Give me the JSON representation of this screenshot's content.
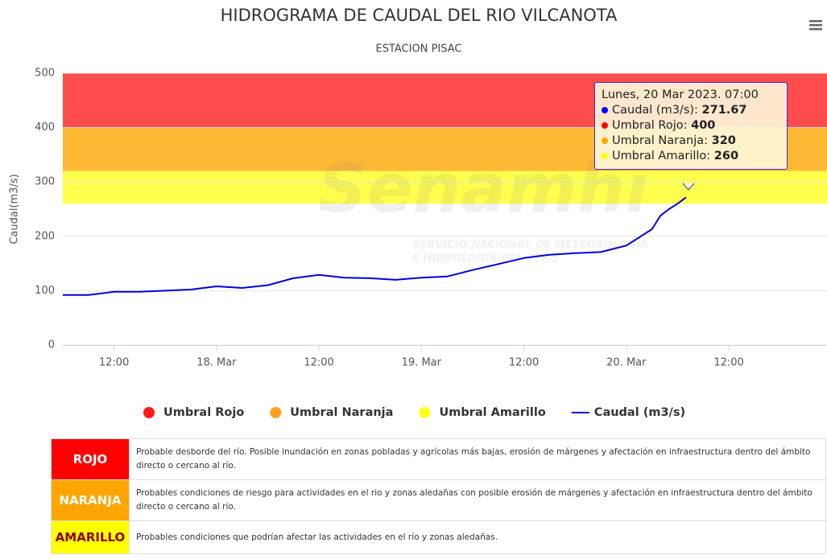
{
  "chart_data": {
    "type": "line",
    "title": "HIDROGRAMA DE CAUDAL DEL RIO VILCANOTA",
    "subtitle": "ESTACION PISAC",
    "y_label": "Caudal(m3/s)",
    "watermark": {
      "name": "Senamhi",
      "text1": "SERVICIO NACIONAL DE METEOROLOGÍA",
      "text2": "E HIDROLOGÍA DEL PERÚ"
    },
    "ylim": [
      0,
      500
    ],
    "yticks": [
      0,
      100,
      200,
      300,
      400,
      500
    ],
    "xlim": [
      "2023-03-17 06:00",
      "2023-03-20 23:30"
    ],
    "xticks": [
      {
        "value": "2023-03-17 12:00",
        "label": "12:00"
      },
      {
        "value": "2023-03-18 00:00",
        "label": "18. Mar"
      },
      {
        "value": "2023-03-18 12:00",
        "label": "12:00"
      },
      {
        "value": "2023-03-19 00:00",
        "label": "19. Mar"
      },
      {
        "value": "2023-03-19 12:00",
        "label": "12:00"
      },
      {
        "value": "2023-03-20 00:00",
        "label": "20. Mar"
      },
      {
        "value": "2023-03-20 12:00",
        "label": "12:00"
      }
    ],
    "bands": [
      {
        "name": "Umbral Rojo",
        "from": 400,
        "to": 500,
        "color": "#ff4d4d",
        "legend_color": "#ff1a1a"
      },
      {
        "name": "Umbral Naranja",
        "from": 320,
        "to": 400,
        "color": "#ffb833",
        "legend_color": "#ffa31a"
      },
      {
        "name": "Umbral Amarillo",
        "from": 260,
        "to": 320,
        "color": "#ffff4d",
        "legend_color": "#ffff1a"
      }
    ],
    "x": [
      "2023-03-17 06:00",
      "2023-03-17 09:00",
      "2023-03-17 12:00",
      "2023-03-17 15:00",
      "2023-03-17 18:00",
      "2023-03-17 21:00",
      "2023-03-18 00:00",
      "2023-03-18 03:00",
      "2023-03-18 06:00",
      "2023-03-18 09:00",
      "2023-03-18 12:00",
      "2023-03-18 15:00",
      "2023-03-18 18:00",
      "2023-03-18 21:00",
      "2023-03-19 00:00",
      "2023-03-19 03:00",
      "2023-03-19 06:00",
      "2023-03-19 09:00",
      "2023-03-19 12:00",
      "2023-03-19 15:00",
      "2023-03-19 18:00",
      "2023-03-19 21:00",
      "2023-03-20 00:00",
      "2023-03-20 03:00",
      "2023-03-20 04:00",
      "2023-03-20 05:00",
      "2023-03-20 06:00",
      "2023-03-20 07:00"
    ],
    "series": [
      {
        "name": "Caudal (m3/s)",
        "color": "#0000dd",
        "values": [
          92,
          92,
          98,
          98,
          100,
          102,
          108,
          105,
          110,
          123,
          129,
          124,
          123,
          120,
          124,
          126,
          138,
          149,
          160,
          166,
          169,
          171,
          183,
          213,
          238,
          250,
          260,
          271.67
        ]
      }
    ],
    "tooltip": {
      "title": "Lunes, 20 Mar 2023. 07:00"
    }
  },
  "table": {
    "rows": [
      [
        "ROJO",
        "Probable desborde del río. Posible inundación en zonas pobladas y agrícolas más bajas, erosión de márgenes y afectación en infraestructura dentro del ámbito directo o cercano al río."
      ],
      [
        "NARANJA",
        "Probables condiciones de riesgo para actividades en el rio y zonas aledañas con posible erosión de márgenes y afectación en infraestructura dentro del ámbito directo o cercano al río."
      ],
      [
        "AMARILLO",
        "Probables condiciones que podrían afectar las actividades en el río y zonas aledañas."
      ]
    ]
  }
}
